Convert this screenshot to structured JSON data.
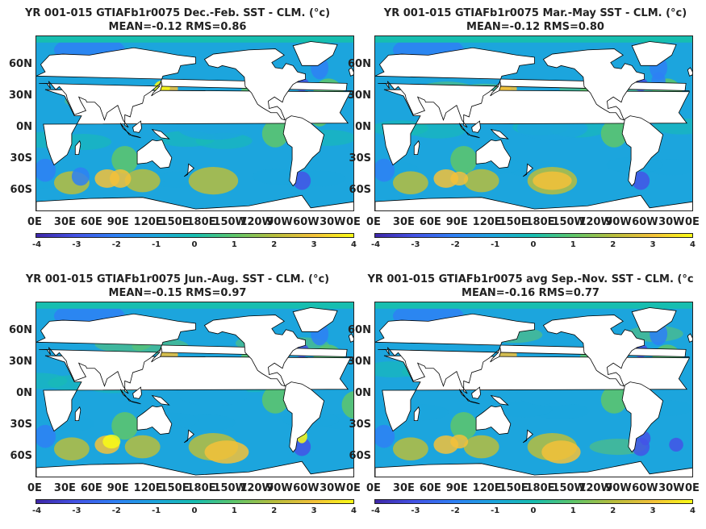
{
  "colorbar": {
    "ticks": [
      "-4",
      "-3",
      "-2",
      "-1",
      "0",
      "1",
      "2",
      "3",
      "4"
    ],
    "colors": [
      "#3e26a8",
      "#4353e6",
      "#2e80f5",
      "#1ca5dd",
      "#17beb0",
      "#5ec66a",
      "#b7bd3d",
      "#f3c13a",
      "#f9fb15"
    ]
  },
  "lat_labels": [
    "60N",
    "30N",
    "0N",
    "30S",
    "60S"
  ],
  "lon_labels": [
    "0E",
    "30E",
    "60E",
    "90E",
    "120E",
    "150E",
    "180E",
    "150W",
    "120W",
    "90W",
    "60W",
    "30W",
    "0E"
  ],
  "panels": [
    {
      "title_line1": "YR 001-015 GTIAFb1r0075  Dec.-Feb. SST - CLM. (°c)",
      "title_line2": "MEAN=-0.12   RMS=0.86",
      "mean": -0.12,
      "rms": 0.86
    },
    {
      "title_line1": "YR 001-015 GTIAFb1r0075  Mar.-May SST - CLM. (°c)",
      "title_line2": "MEAN=-0.12   RMS=0.80",
      "mean": -0.12,
      "rms": 0.8
    },
    {
      "title_line1": "YR 001-015 GTIAFb1r0075  Jun.-Aug. SST - CLM. (°c)",
      "title_line2": "MEAN=-0.15   RMS=0.97",
      "mean": -0.15,
      "rms": 0.97
    },
    {
      "title_line1": "YR 001-015 GTIAFb1r0075  avg Sep.-Nov. SST - CLM. (°c",
      "title_line2": "MEAN=-0.16   RMS=0.77",
      "mean": -0.16,
      "rms": 0.77
    }
  ]
}
